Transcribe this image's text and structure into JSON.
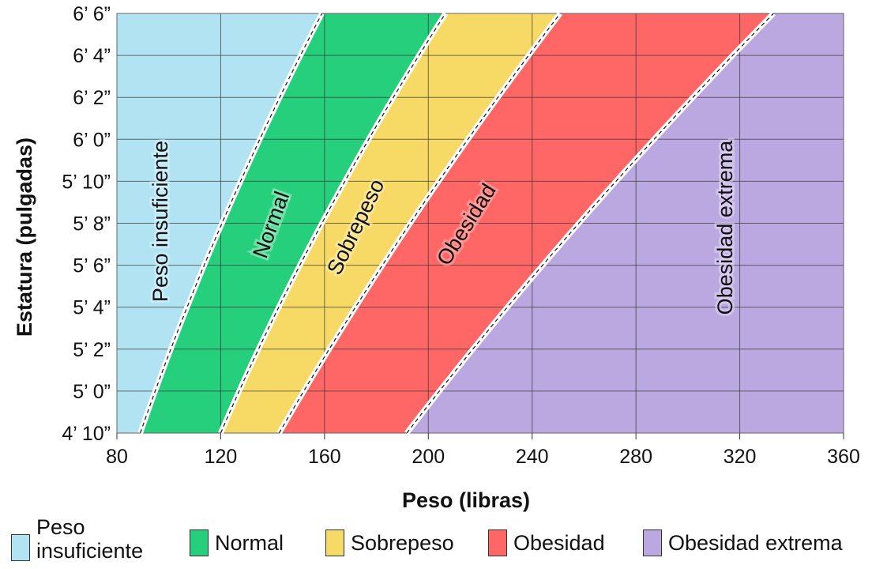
{
  "chart_data": {
    "type": "area",
    "xlabel": "Peso (libras)",
    "ylabel": "Estatura (pulgadas)",
    "xlim": [
      80,
      360
    ],
    "ylim_inches": [
      58,
      78
    ],
    "x_ticks": [
      80,
      120,
      160,
      200,
      240,
      280,
      320,
      360
    ],
    "y_ticks": [
      "4’ 10”",
      "5’ 0”",
      "5’ 2”",
      "5’ 4”",
      "5’ 6”",
      "5’ 8”",
      "5’ 10”",
      "6’ 0”",
      "6’ 2”",
      "6’ 4”",
      "6’ 6”"
    ],
    "y_tick_values_inches": [
      58,
      60,
      62,
      64,
      66,
      68,
      70,
      72,
      74,
      76,
      78
    ],
    "grid": true,
    "boundaries": [
      {
        "between": [
          "Peso insuficiente",
          "Normal"
        ],
        "points": [
          [
            58,
            89
          ],
          [
            68,
            120.5
          ],
          [
            78,
            159
          ]
        ]
      },
      {
        "between": [
          "Normal",
          "Sobrepeso"
        ],
        "points": [
          [
            58,
            120
          ],
          [
            68,
            159
          ],
          [
            78,
            206.6
          ]
        ]
      },
      {
        "between": [
          "Sobrepeso",
          "Obesidad"
        ],
        "points": [
          [
            58,
            142.5
          ],
          [
            68,
            193
          ],
          [
            78,
            250.8
          ]
        ]
      },
      {
        "between": [
          "Obesidad",
          "Obesidad extrema"
        ],
        "points": [
          [
            58,
            191.7
          ],
          [
            68,
            258
          ],
          [
            78,
            333
          ]
        ]
      }
    ],
    "regions": [
      {
        "name": "Peso insuficiente",
        "color": "#b1e3f2"
      },
      {
        "name": "Normal",
        "color": "#26cf7c"
      },
      {
        "name": "Sobrepeso",
        "color": "#f7d966"
      },
      {
        "name": "Obesidad",
        "color": "#ff6666"
      },
      {
        "name": "Obesidad extrema",
        "color": "#bba8e0"
      }
    ],
    "legend_placement": "bottom"
  },
  "legend": [
    {
      "label_line1": "Peso",
      "label_line2": "insuficiente",
      "color": "#b1e3f2"
    },
    {
      "label": "Normal",
      "color": "#26cf7c"
    },
    {
      "label": "Sobrepeso",
      "color": "#f7d966"
    },
    {
      "label": "Obesidad",
      "color": "#ff6666"
    },
    {
      "label": "Obesidad extrema",
      "color": "#bba8e0"
    }
  ]
}
